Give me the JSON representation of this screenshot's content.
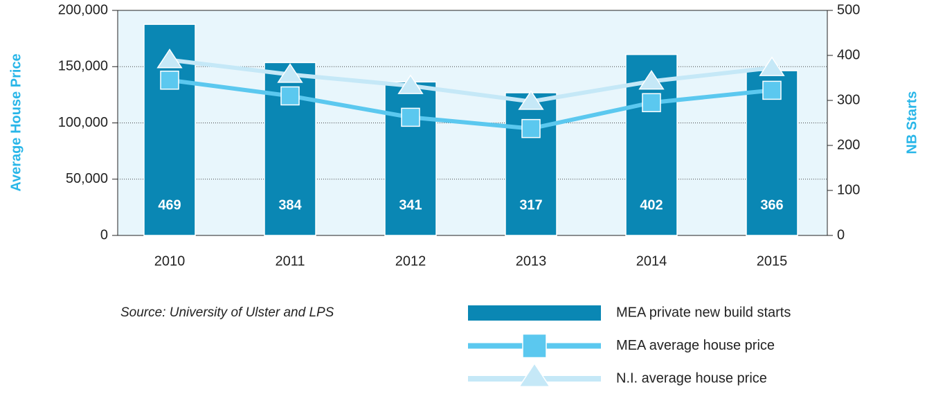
{
  "chart_data": {
    "type": "combo",
    "categories": [
      "2010",
      "2011",
      "2012",
      "2013",
      "2014",
      "2015"
    ],
    "series": [
      {
        "name": "MEA private new build starts",
        "type": "bar",
        "axis": "y2",
        "color": "#0a87b4",
        "values": [
          469,
          384,
          341,
          317,
          402,
          366
        ]
      },
      {
        "name": "MEA average house price",
        "type": "line",
        "marker": "square",
        "color": "#5bc8ef",
        "values": [
          138000,
          124000,
          105000,
          95000,
          118000,
          129000
        ]
      },
      {
        "name": "N.I. average house price",
        "type": "line",
        "marker": "triangle",
        "color": "#c5e8f7",
        "values": [
          156000,
          143000,
          133000,
          119000,
          137000,
          149000
        ]
      }
    ],
    "ylabel": "Average House Price",
    "y2label": "NB Starts",
    "ylim": [
      0,
      200000
    ],
    "yticks": [
      0,
      {
        "value": 50000,
        "label": "50,000"
      },
      {
        "value": 100000,
        "label": "100,000"
      },
      {
        "value": 150000,
        "label": "150,000"
      },
      {
        "value": 200000,
        "label": "200,000"
      }
    ],
    "y2lim": [
      0,
      500
    ],
    "y2ticks": [
      0,
      100,
      200,
      300,
      400,
      500
    ],
    "grid": true,
    "source": "Source: University of Ulster and LPS"
  }
}
